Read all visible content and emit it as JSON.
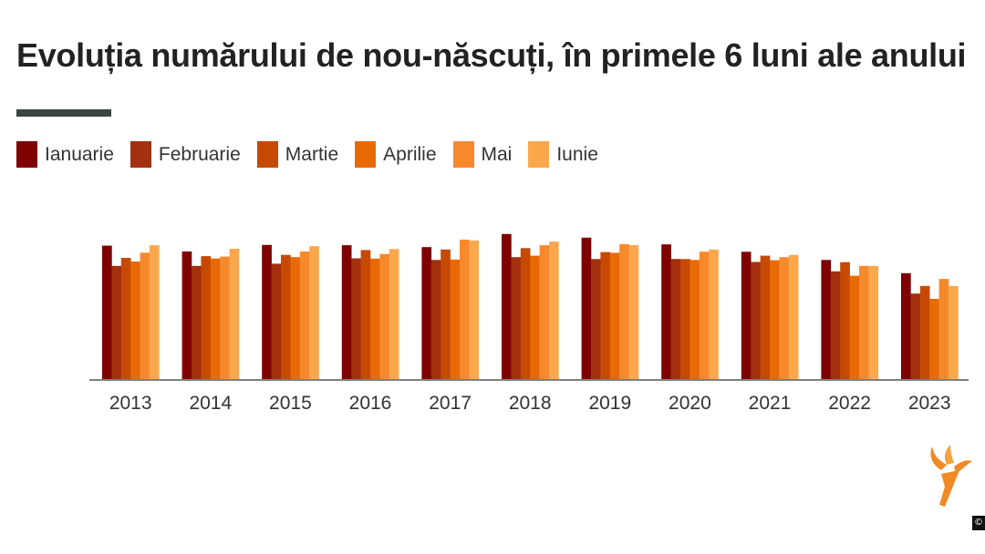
{
  "title": "Evoluția numărului de nou-născuți, în primele 6 luni ale anului",
  "legend": [
    {
      "label": "Ianuarie",
      "color": "#800000"
    },
    {
      "label": "Februarie",
      "color": "#a3300e"
    },
    {
      "label": "Martie",
      "color": "#c64a06"
    },
    {
      "label": "Aprilie",
      "color": "#e86a07"
    },
    {
      "label": "Mai",
      "color": "#f7892d"
    },
    {
      "label": "Iunie",
      "color": "#fba84d"
    }
  ],
  "copyright": "©",
  "logo": "rfe-rl-torch-logo",
  "chart_data": {
    "type": "bar",
    "categories": [
      "2013",
      "2014",
      "2015",
      "2016",
      "2017",
      "2018",
      "2019",
      "2020",
      "2021",
      "2022",
      "2023"
    ],
    "ylim": [
      0,
      100
    ],
    "series": [
      {
        "name": "Ianuarie",
        "color": "#800000",
        "values": [
          91.5,
          87.5,
          92.0,
          91.8,
          90.5,
          99.5,
          97.0,
          92.4,
          87.3,
          81.7,
          72.6
        ]
      },
      {
        "name": "Februarie",
        "color": "#a3300e",
        "values": [
          77.6,
          77.6,
          79.1,
          82.8,
          81.7,
          83.6,
          82.3,
          82.4,
          80.3,
          73.9,
          58.6
        ]
      },
      {
        "name": "Martie",
        "color": "#c64a06",
        "values": [
          83.1,
          84.3,
          85.2,
          88.5,
          88.9,
          89.8,
          87.1,
          82.3,
          84.6,
          80.2,
          63.9
        ]
      },
      {
        "name": "Aprilie",
        "color": "#e86a07",
        "values": [
          80.6,
          82.7,
          83.6,
          82.6,
          82.0,
          84.6,
          86.6,
          81.7,
          81.5,
          70.9,
          55.0
        ]
      },
      {
        "name": "Mai",
        "color": "#f7892d",
        "values": [
          86.7,
          84.0,
          87.5,
          85.8,
          95.6,
          91.8,
          92.5,
          87.4,
          83.6,
          77.6,
          68.7
        ]
      },
      {
        "name": "Iunie",
        "color": "#fba84d",
        "values": [
          91.8,
          89.4,
          91.1,
          89.2,
          95.0,
          94.3,
          91.9,
          88.8,
          85.1,
          77.6,
          63.9
        ]
      }
    ]
  }
}
